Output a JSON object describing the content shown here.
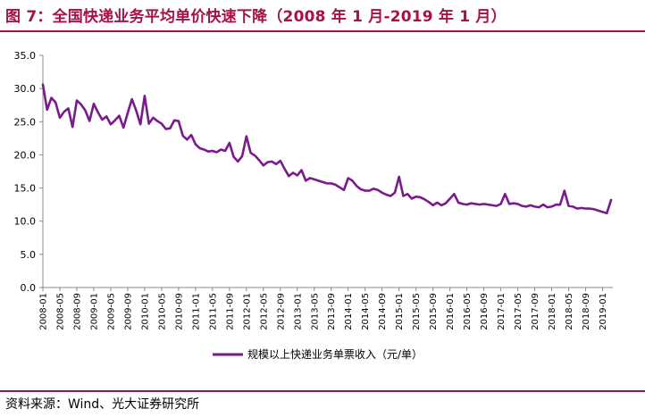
{
  "header": {
    "title": "图 7：全国快递业务平均单价快速下降（2008 年 1 月-2019 年 1 月）"
  },
  "footer": {
    "source": "资料来源：Wind、光大证券研究所"
  },
  "colors": {
    "accent": "#a5114a",
    "series": "#7a1a8c",
    "axis": "#888888"
  },
  "chart_data": {
    "type": "line",
    "title": "",
    "xlabel": "",
    "ylabel": "",
    "ylim": [
      0,
      35
    ],
    "yticks": [
      "0.0",
      "5.0",
      "10.0",
      "15.0",
      "20.0",
      "25.0",
      "30.0",
      "35.0"
    ],
    "grid": false,
    "legend_position": "bottom-center",
    "xticks": [
      "2008-01",
      "2008-05",
      "2008-09",
      "2009-01",
      "2009-05",
      "2009-09",
      "2010-01",
      "2010-05",
      "2010-09",
      "2011-01",
      "2011-05",
      "2011-09",
      "2012-01",
      "2012-05",
      "2012-09",
      "2013-01",
      "2013-05",
      "2013-09",
      "2014-01",
      "2014-05",
      "2014-09",
      "2015-01",
      "2015-05",
      "2015-09",
      "2016-01",
      "2016-05",
      "2016-09",
      "2017-01",
      "2017-05",
      "2017-09",
      "2018-01",
      "2018-05",
      "2018-09",
      "2019-01"
    ],
    "series": [
      {
        "name": "规模以上快递业务单票收入（元/单）",
        "start": "2008-01",
        "values": [
          30.6,
          26.8,
          28.6,
          27.9,
          25.6,
          26.5,
          27.0,
          24.2,
          28.2,
          27.6,
          26.7,
          25.1,
          27.7,
          26.4,
          25.3,
          25.8,
          24.6,
          25.2,
          25.9,
          24.1,
          26.3,
          28.4,
          26.7,
          24.6,
          28.9,
          24.7,
          25.6,
          25.1,
          24.7,
          23.9,
          24.0,
          25.2,
          25.1,
          22.9,
          22.3,
          23.0,
          21.6,
          21.0,
          20.8,
          20.5,
          20.6,
          20.4,
          20.8,
          20.6,
          21.8,
          19.7,
          19.0,
          19.8,
          22.8,
          20.3,
          19.9,
          19.2,
          18.4,
          18.9,
          19.0,
          18.6,
          19.1,
          17.9,
          16.8,
          17.3,
          16.9,
          17.7,
          16.1,
          16.5,
          16.3,
          16.1,
          15.9,
          15.7,
          15.7,
          15.5,
          15.1,
          14.7,
          16.5,
          16.1,
          15.3,
          14.8,
          14.6,
          14.6,
          14.9,
          14.7,
          14.3,
          14.0,
          13.8,
          14.3,
          16.7,
          13.8,
          14.1,
          13.4,
          13.7,
          13.6,
          13.3,
          12.9,
          12.4,
          12.8,
          12.4,
          12.7,
          13.4,
          14.1,
          12.8,
          12.6,
          12.5,
          12.7,
          12.6,
          12.5,
          12.6,
          12.5,
          12.4,
          12.3,
          12.6,
          14.1,
          12.6,
          12.7,
          12.6,
          12.3,
          12.2,
          12.4,
          12.2,
          12.1,
          12.5,
          12.1,
          12.2,
          12.5,
          12.5,
          14.6,
          12.3,
          12.2,
          11.9,
          12.0,
          11.9,
          11.9,
          11.8,
          11.6,
          11.4,
          11.2,
          13.2
        ]
      }
    ]
  }
}
